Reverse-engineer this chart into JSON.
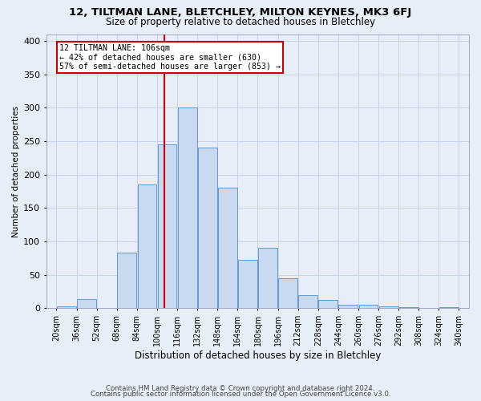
{
  "title1": "12, TILTMAN LANE, BLETCHLEY, MILTON KEYNES, MK3 6FJ",
  "title2": "Size of property relative to detached houses in Bletchley",
  "xlabel": "Distribution of detached houses by size in Bletchley",
  "ylabel": "Number of detached properties",
  "footer1": "Contains HM Land Registry data © Crown copyright and database right 2024.",
  "footer2": "Contains public sector information licensed under the Open Government Licence v3.0.",
  "bar_labels": [
    "20sqm",
    "36sqm",
    "52sqm",
    "68sqm",
    "84sqm",
    "100sqm",
    "116sqm",
    "132sqm",
    "148sqm",
    "164sqm",
    "180sqm",
    "196sqm",
    "212sqm",
    "228sqm",
    "244sqm",
    "260sqm",
    "276sqm",
    "292sqm",
    "308sqm",
    "324sqm",
    "340sqm"
  ],
  "bar_values": [
    3,
    14,
    0,
    83,
    185,
    245,
    300,
    240,
    180,
    72,
    90,
    45,
    20,
    12,
    5,
    5,
    3,
    2,
    0,
    2,
    0
  ],
  "bin_edges": [
    20,
    36,
    52,
    68,
    84,
    100,
    116,
    132,
    148,
    164,
    180,
    196,
    212,
    228,
    244,
    260,
    276,
    292,
    308,
    324,
    340,
    356
  ],
  "bin_width": 16,
  "bar_color": "#c9d9f0",
  "bar_edge_color": "#6699cc",
  "property_line_x": 106,
  "annotation_line1": "12 TILTMAN LANE: 106sqm",
  "annotation_line2": "← 42% of detached houses are smaller (630)",
  "annotation_line3": "57% of semi-detached houses are larger (853) →",
  "annotation_box_color": "#ffffff",
  "annotation_box_edge": "#cc0000",
  "vline_color": "#cc0000",
  "ylim": [
    0,
    410
  ],
  "yticks": [
    0,
    50,
    100,
    150,
    200,
    250,
    300,
    350,
    400
  ],
  "xlim_min": 12,
  "xlim_max": 348,
  "grid_color": "#c8d4e8",
  "bg_color": "#e8eef8",
  "title1_fontsize": 9.5,
  "title2_fontsize": 8.5,
  "xlabel_fontsize": 8.5,
  "ylabel_fontsize": 7.5,
  "tick_fontsize": 7,
  "footer_fontsize": 6.2
}
